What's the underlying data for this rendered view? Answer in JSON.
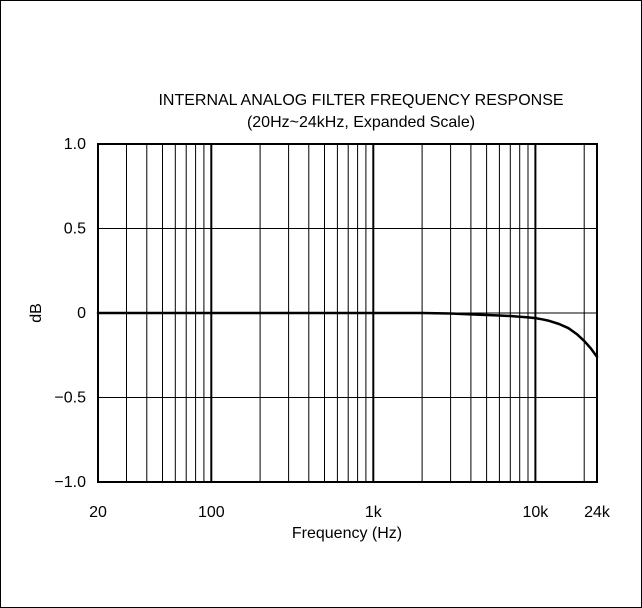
{
  "chart_data": {
    "type": "line",
    "title": "INTERNAL ANALOG FILTER FREQUENCY RESPONSE",
    "subtitle": "(20Hz~24kHz, Expanded Scale)",
    "xlabel": "Frequency (Hz)",
    "ylabel": "dB",
    "xscale": "log",
    "xlim": [
      20,
      24000
    ],
    "ylim": [
      -1.0,
      1.0
    ],
    "grid": true,
    "x_ticks": [
      {
        "value": 20,
        "label": "20"
      },
      {
        "value": 100,
        "label": "100"
      },
      {
        "value": 1000,
        "label": "1k"
      },
      {
        "value": 10000,
        "label": "10k"
      },
      {
        "value": 24000,
        "label": "24k"
      }
    ],
    "y_ticks": [
      {
        "value": 1.0,
        "label": "1.0"
      },
      {
        "value": 0.5,
        "label": "0.5"
      },
      {
        "value": 0,
        "label": "0"
      },
      {
        "value": -0.5,
        "label": "−0.5"
      },
      {
        "value": -1.0,
        "label": "−1.0"
      }
    ],
    "series": [
      {
        "x": [
          20,
          100,
          1000,
          2000,
          3000,
          4000,
          5000,
          6000,
          7000,
          8000,
          9000,
          10000,
          11000,
          12000,
          14000,
          16000,
          18000,
          20000,
          22000,
          24000
        ],
        "y": [
          0,
          0,
          0,
          0,
          -0.003,
          -0.008,
          -0.012,
          -0.015,
          -0.018,
          -0.022,
          -0.026,
          -0.03,
          -0.037,
          -0.045,
          -0.065,
          -0.09,
          -0.125,
          -0.165,
          -0.21,
          -0.26
        ]
      }
    ]
  }
}
